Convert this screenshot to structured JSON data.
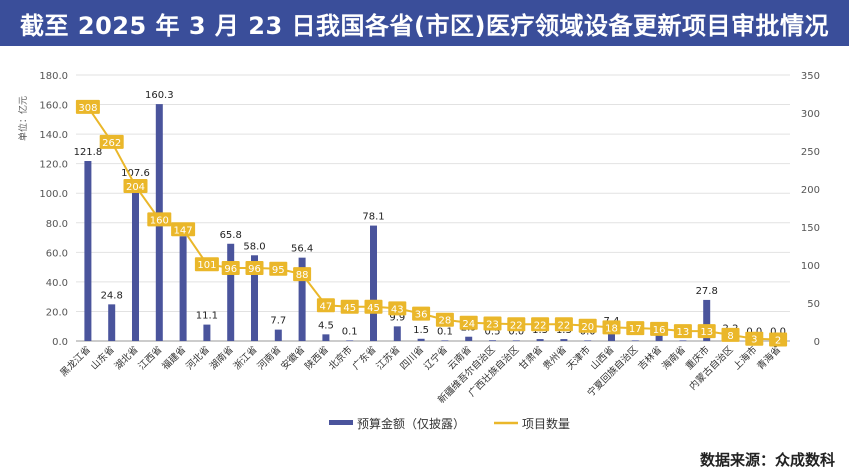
{
  "title": "截至 2025 年 3 月 23 日我国各省(市区)医疗领域设备更新项目审批情况",
  "source": "数据来源：众成数科",
  "colors": {
    "bar": "#4a549c",
    "line": "#eab72a",
    "label_box": "#eab72a",
    "title_bg": "#3a4e9a"
  },
  "chart_data": {
    "type": "bar",
    "title": "截至 2025 年 3 月 23 日我国各省(市区)医疗领域设备更新项目审批情况",
    "unit_label": "单位：亿元",
    "categories": [
      "黑龙江省",
      "山东省",
      "湖北省",
      "江西省",
      "福建省",
      "河北省",
      "湖南省",
      "浙江省",
      "河南省",
      "安徽省",
      "陕西省",
      "北京市",
      "广东省",
      "江苏省",
      "四川省",
      "辽宁省",
      "云南省",
      "新疆维吾尔自治区",
      "广西壮族自治区",
      "甘肃省",
      "贵州省",
      "天津市",
      "山西省",
      "宁夏回族自治区",
      "吉林省",
      "海南省",
      "重庆市",
      "内蒙古自治区",
      "上海市",
      "青海省"
    ],
    "series": [
      {
        "name": "预算金额（仅披露）",
        "type": "bar",
        "axis": "left",
        "values": [
          121.8,
          24.8,
          107.6,
          160.3,
          70.9,
          11.1,
          65.8,
          58.0,
          7.7,
          56.4,
          4.5,
          0.1,
          78.1,
          9.9,
          1.5,
          0.1,
          2.9,
          0.5,
          0.0,
          1.3,
          1.3,
          0.0,
          7.4,
          0.2,
          6.0,
          0.0,
          27.8,
          2.2,
          0.0,
          0.0
        ],
        "labels": [
          "121.8",
          "24.8",
          "107.6",
          "160.3",
          "70.9",
          "11.1",
          "65.8",
          "58.0",
          "7.7",
          "56.4",
          "4.5",
          "0.1",
          "78.1",
          "9.9",
          "1.5",
          "0.1",
          "2.9",
          "0.5",
          "0.0",
          "1.3",
          "1.3",
          "0.0",
          "7.4",
          "0.2",
          "",
          "0.0",
          "27.8",
          "2.2",
          "0.0",
          "0.0"
        ]
      },
      {
        "name": "项目数量",
        "type": "line",
        "axis": "right",
        "values": [
          308,
          262,
          204,
          160,
          147,
          101,
          96,
          96,
          95,
          88,
          47,
          45,
          45,
          43,
          36,
          28,
          24,
          23,
          22,
          22,
          22,
          20,
          18,
          17,
          16,
          13,
          13,
          8,
          3,
          2
        ]
      }
    ],
    "y_left": {
      "min": 0,
      "max": 180,
      "ticks": [
        "0.0",
        "20.0",
        "40.0",
        "60.0",
        "80.0",
        "100.0",
        "120.0",
        "140.0",
        "160.0",
        "180.0"
      ]
    },
    "y_right": {
      "min": 0,
      "max": 350,
      "ticks": [
        "0",
        "50",
        "100",
        "150",
        "200",
        "250",
        "300",
        "350"
      ]
    },
    "legend": {
      "position": "bottom",
      "items": [
        "预算金额（仅披露）",
        "项目数量"
      ]
    }
  }
}
